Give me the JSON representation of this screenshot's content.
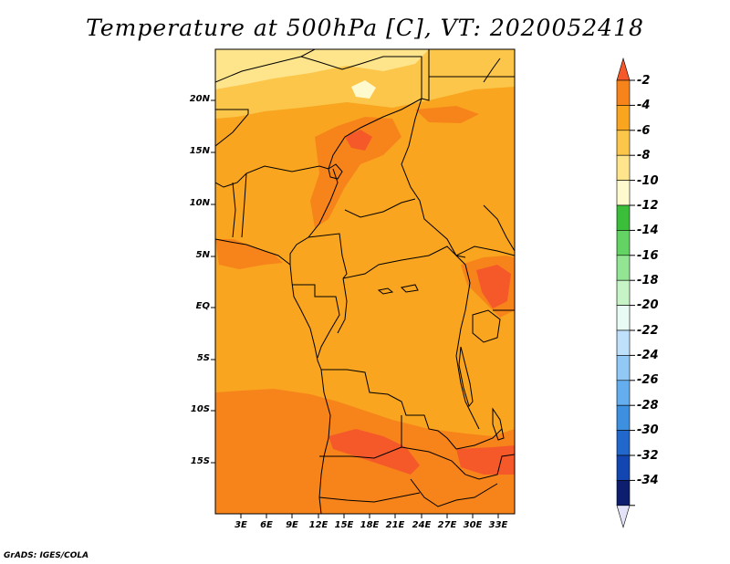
{
  "title": "Temperature at 500hPa [C], VT: 2020052418",
  "credit": "GrADS: IGES/COLA",
  "map": {
    "region": "Central Africa",
    "lat_labels": [
      "20N",
      "15N",
      "10N",
      "5N",
      "EQ",
      "5S",
      "10S",
      "15S"
    ],
    "lon_labels": [
      "3E",
      "6E",
      "9E",
      "12E",
      "15E",
      "18E",
      "21E",
      "24E",
      "27E",
      "30E",
      "33E"
    ]
  },
  "colorbar": {
    "labels": [
      "-2",
      "-4",
      "-6",
      "-8",
      "-10",
      "-12",
      "-14",
      "-16",
      "-18",
      "-20",
      "-22",
      "-24",
      "-26",
      "-28",
      "-30",
      "-32",
      "-34"
    ],
    "colors": [
      "#f5592a",
      "#f7841a",
      "#f9a51f",
      "#fbc64a",
      "#fee48b",
      "#fffacd",
      "#3bbf3b",
      "#63d463",
      "#93e593",
      "#c6f4c6",
      "#e8fbf4",
      "#bfe0fb",
      "#92c8f5",
      "#64adee",
      "#3d8fe0",
      "#2167cc",
      "#1346b0",
      "#0d1e6e",
      "#e3e3f8"
    ],
    "overflow_top_color": "#f5592a",
    "underflow_bottom_color": "#e3e3f8"
  }
}
